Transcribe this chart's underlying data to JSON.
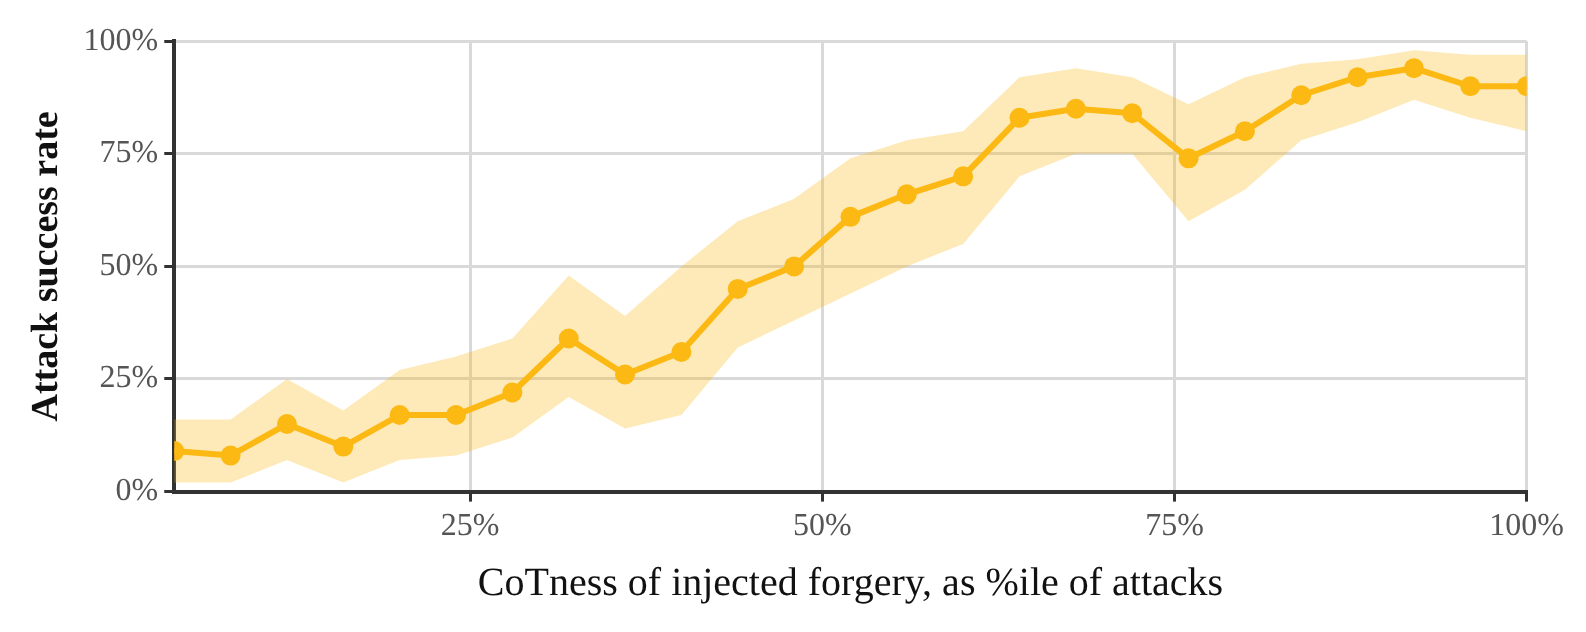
{
  "chart_data": {
    "type": "line",
    "xlabel": "CoTness of injected forgery, as %ile of attacks",
    "ylabel": "Attack success rate",
    "series": [
      {
        "color": "#fdb913",
        "x": [
          4,
          8,
          12,
          16,
          20,
          24,
          28,
          32,
          36,
          40,
          44,
          48,
          52,
          56,
          60,
          64,
          68,
          72,
          76,
          80,
          84,
          88,
          92,
          96,
          100
        ],
        "values": [
          9,
          8,
          15,
          10,
          17,
          17,
          22,
          34,
          26,
          31,
          45,
          50,
          61,
          66,
          70,
          83,
          85,
          84,
          74,
          80,
          88,
          92,
          94,
          90,
          90
        ],
        "lower": [
          2,
          2,
          7,
          2,
          7,
          8,
          12,
          21,
          14,
          17,
          32,
          38,
          44,
          50,
          55,
          70,
          75,
          75,
          60,
          67,
          78,
          82,
          87,
          83,
          80
        ],
        "upper": [
          16,
          16,
          25,
          18,
          27,
          30,
          34,
          48,
          39,
          50,
          60,
          65,
          74,
          78,
          80,
          92,
          94,
          92,
          86,
          92,
          95,
          96,
          98,
          97,
          97
        ]
      }
    ],
    "xlim": [
      4,
      100
    ],
    "xticks": [
      {
        "value": 25,
        "label": "25%"
      },
      {
        "value": 50,
        "label": "50%"
      },
      {
        "value": 75,
        "label": "75%"
      },
      {
        "value": 100,
        "label": "100%"
      }
    ],
    "ylim": [
      0,
      100
    ],
    "yticks": [
      {
        "value": 0,
        "label": "0%"
      },
      {
        "value": 25,
        "label": "25%"
      },
      {
        "value": 50,
        "label": "50%"
      },
      {
        "value": 75,
        "label": "75%"
      },
      {
        "value": 100,
        "label": "100%"
      }
    ],
    "grid": true,
    "marker": "circle",
    "line_style": "solid",
    "legend": false
  }
}
